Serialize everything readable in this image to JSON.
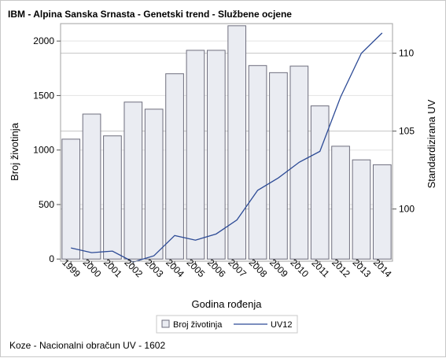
{
  "chart_data": {
    "type": "bar",
    "title": "IBM - Alpina Sanska Srnasta - Genetski trend - Službene ocjene",
    "xlabel": "Godina rođenja",
    "ylabel": "Broj životinja",
    "y2label": "Standardizirana UV",
    "categories": [
      "1999",
      "2000",
      "2001",
      "2002",
      "2003",
      "2004",
      "2005",
      "2006",
      "2007",
      "2008",
      "2009",
      "2010",
      "2011",
      "2012",
      "2013",
      "2014"
    ],
    "series": [
      {
        "name": "Broj životinja",
        "type": "bar",
        "axis": "left",
        "values": [
          1100,
          1330,
          1130,
          1440,
          1375,
          1700,
          1915,
          1915,
          2140,
          1775,
          1710,
          1770,
          1405,
          1035,
          910,
          865
        ]
      },
      {
        "name": "UV12",
        "type": "line",
        "axis": "right",
        "values": [
          97.5,
          97.2,
          97.3,
          96.6,
          97.0,
          98.3,
          98.0,
          98.4,
          99.3,
          101.2,
          102.0,
          103.0,
          103.7,
          107.2,
          110.0,
          111.3
        ]
      }
    ],
    "y_ticks": [
      0,
      500,
      1000,
      1500,
      2000
    ],
    "y_range": [
      -20,
      2160
    ],
    "y2_ticks": [
      100,
      105,
      110
    ],
    "y2_range": [
      96.65,
      111.9
    ],
    "grid": true,
    "legend": "bottom",
    "colors": {
      "bar_fill": "#eaecf2",
      "bar_stroke": "#6e6e7d",
      "line": "#2d4b96",
      "grid": "#e3e3e3",
      "ref_line": "#c4c4c4"
    }
  },
  "footnote": "Koze - Nacionalni obračun UV - 1602"
}
